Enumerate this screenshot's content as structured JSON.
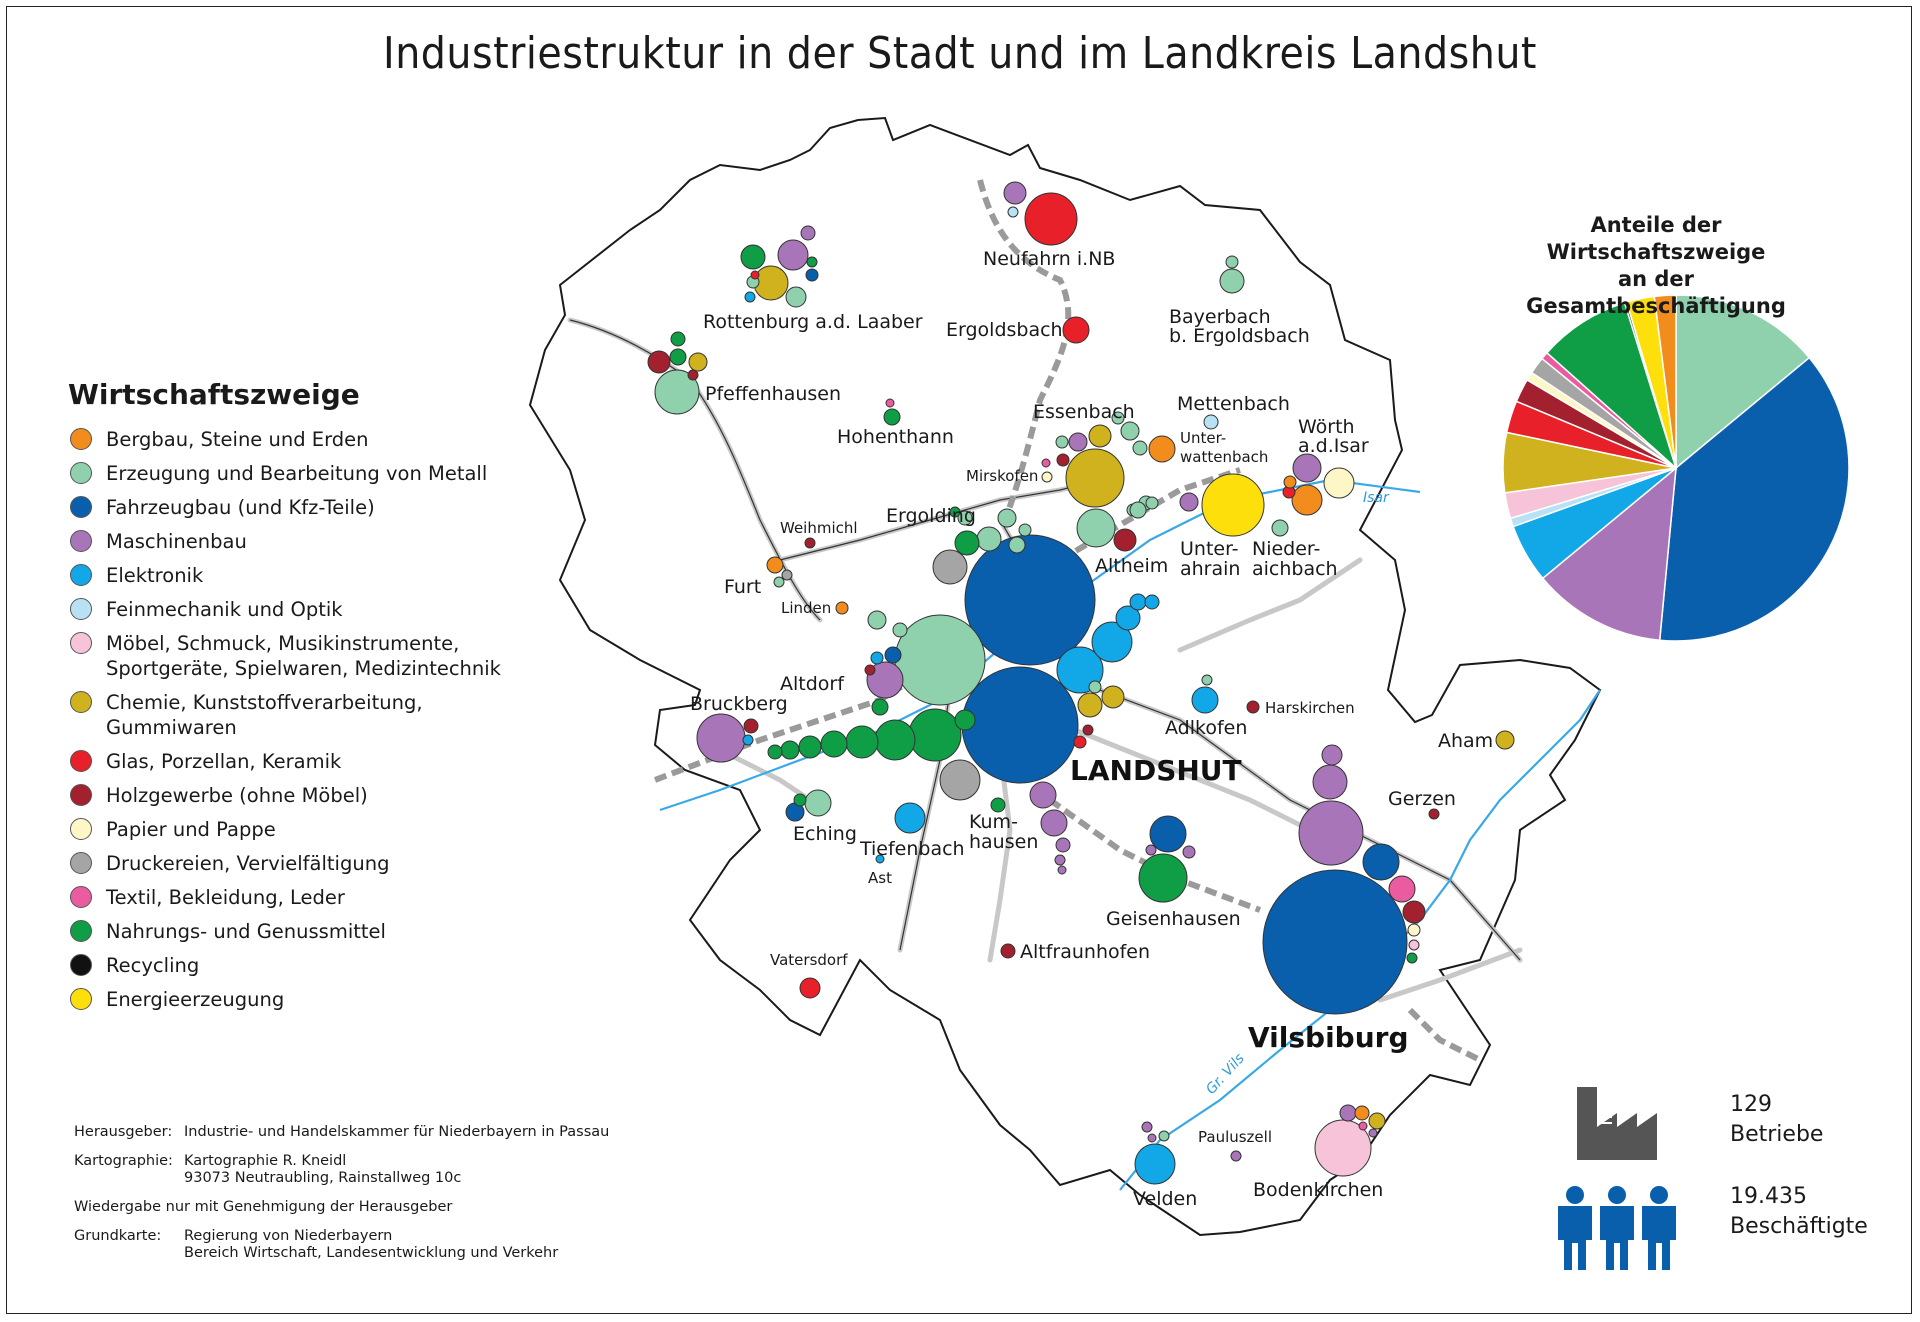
{
  "title": "Industriestruktur in der Stadt und im Landkreis Landshut",
  "legend": {
    "heading": "Wirtschaftszweige",
    "items": [
      {
        "label": "Bergbau, Steine und Erden",
        "color": "#f28c1c"
      },
      {
        "label": "Erzeugung und Bearbeitung von Metall",
        "color": "#8fd1ad"
      },
      {
        "label": "Fahrzeugbau (und Kfz-Teile)",
        "color": "#0a5fad"
      },
      {
        "label": "Maschinenbau",
        "color": "#a876b8"
      },
      {
        "label": "Elektronik",
        "color": "#12a7e6"
      },
      {
        "label": "Feinmechanik und Optik",
        "color": "#b8e2f4"
      },
      {
        "label": "Möbel, Schmuck, Musikinstrumente, Sportgeräte, Spielwaren, Medizintechnik",
        "color": "#f6c3d8"
      },
      {
        "label": "Chemie, Kunststoffverarbeitung, Gummiwaren",
        "color": "#cfb21e"
      },
      {
        "label": "Glas, Porzellan, Keramik",
        "color": "#e8202a"
      },
      {
        "label": "Holzgewerbe (ohne Möbel)",
        "color": "#a3202e"
      },
      {
        "label": "Papier und Pappe",
        "color": "#fdf7c8"
      },
      {
        "label": "Druckereien, Vervielfältigung",
        "color": "#a5a5a5"
      },
      {
        "label": "Textil, Bekleidung, Leder",
        "color": "#ea5ba0"
      },
      {
        "label": "Nahrungs- und Genussmittel",
        "color": "#0f9d46"
      },
      {
        "label": "Recycling",
        "color": "#111111"
      },
      {
        "label": "Energieerzeugung",
        "color": "#fde00b"
      }
    ]
  },
  "legend_lines": {
    "item6a": "Möbel, Schmuck, Musikinstrumente,",
    "item6b": "Sportgeräte, Spielwaren, Medizintechnik",
    "item7a": "Chemie, Kunststoffverarbeitung,",
    "item7b": "Gummiwaren"
  },
  "pie": {
    "title_line1": "Anteile der Wirtschaftszweige",
    "title_line2": "an der Gesamtbeschäftigung"
  },
  "chart_data": {
    "type": "pie",
    "slices": [
      {
        "sector": "Erzeugung und Bearbeitung von Metall",
        "share": 14.0,
        "color": "#8fd1ad"
      },
      {
        "sector": "Fahrzeugbau (und Kfz-Teile)",
        "share": 37.5,
        "color": "#0a5fad"
      },
      {
        "sector": "Maschinenbau",
        "share": 12.5,
        "color": "#a876b8"
      },
      {
        "sector": "Elektronik",
        "share": 5.5,
        "color": "#12a7e6"
      },
      {
        "sector": "Feinmechanik und Optik",
        "share": 0.8,
        "color": "#b8e2f4"
      },
      {
        "sector": "Möbel, Schmuck, Musikinstrumente, Sportgeräte, Spielwaren, Medizintechnik",
        "share": 2.4,
        "color": "#f6c3d8"
      },
      {
        "sector": "Chemie, Kunststoffverarbeitung, Gummiwaren",
        "share": 5.6,
        "color": "#cfb21e"
      },
      {
        "sector": "Glas, Porzellan, Keramik",
        "share": 3.0,
        "color": "#e8202a"
      },
      {
        "sector": "Holzgewerbe (ohne Möbel)",
        "share": 2.2,
        "color": "#a3202e"
      },
      {
        "sector": "Papier und Pappe",
        "share": 0.8,
        "color": "#fdf7c8"
      },
      {
        "sector": "Druckereien, Vervielfältigung",
        "share": 1.6,
        "color": "#a5a5a5"
      },
      {
        "sector": "Textil, Bekleidung, Leder",
        "share": 0.7,
        "color": "#ea5ba0"
      },
      {
        "sector": "Nahrungs- und Genussmittel",
        "share": 8.6,
        "color": "#0f9d46"
      },
      {
        "sector": "Recycling",
        "share": 0.2,
        "color": "#111111"
      },
      {
        "sector": "Energieerzeugung",
        "share": 2.6,
        "color": "#fde00b"
      },
      {
        "sector": "Bergbau, Steine und Erden",
        "share": 2.0,
        "color": "#f28c1c"
      }
    ]
  },
  "places": {
    "neufahrn": "Neufahrn i.NB",
    "rottenburg": "Rottenburg a.d. Laaber",
    "ergoldsbach": "Ergoldsbach",
    "bayerbach1": "Bayerbach",
    "bayerbach2": "b. Ergoldsbach",
    "pfeffenhausen": "Pfeffenhausen",
    "hohenthann": "Hohenthann",
    "essenbach": "Essenbach",
    "mettenbach": "Mettenbach",
    "unterwattenbach1": "Unter-",
    "unterwattenbach2": "wattenbach",
    "woerth1": "Wörth",
    "woerth2": "a.d.Isar",
    "mirskofen": "Mirskofen",
    "weihmichl": "Weihmichl",
    "ergolding": "Ergolding",
    "altheim": "Altheim",
    "unterahrain1": "Unter-",
    "unterahrain2": "ahrain",
    "niederaichbach1": "Nieder-",
    "niederaichbach2": "aichbach",
    "furt": "Furt",
    "linden": "Linden",
    "altdorf": "Altdorf",
    "bruckberg": "Bruckberg",
    "adlkofen": "Adlkofen",
    "harskirchen": "Harskirchen",
    "aham": "Aham",
    "landshut": "LANDSHUT",
    "gerzen": "Gerzen",
    "eching": "Eching",
    "tiefenbach": "Tiefenbach",
    "ast": "Ast",
    "kumhausen1": "Kum-",
    "kumhausen2": "hausen",
    "geisenhausen": "Geisenhausen",
    "altfraunhofen": "Altfraunhofen",
    "vatersdorf": "Vatersdorf",
    "vilsbiburg": "Vilsbiburg",
    "pauluszell": "Pauluszell",
    "velden": "Velden",
    "bodenkirchen": "Bodenkirchen",
    "isar": "Isar",
    "grvils": "Gr. Vils"
  },
  "credits": {
    "hrsg_k": "Herausgeber:",
    "hrsg_v": "Industrie- und Handelskammer für Niederbayern in Passau",
    "karto_k": "Kartographie:",
    "karto_v1": "Kartographie R. Kneidl",
    "karto_v2": "93073 Neutraubling, Rainstallweg 10c",
    "note": "Wiedergabe nur mit Genehmigung der Herausgeber",
    "grund_k": "Grundkarte:",
    "grund_v1": "Regierung von Niederbayern",
    "grund_v2": "Bereich Wirtschaft, Landesentwicklung und Verkehr"
  },
  "stats": {
    "betriebe_num": "129",
    "betriebe_label": "Betriebe",
    "besch_num": "19.435",
    "besch_label": "Beschäftigte",
    "icon_color": "#0a5fad",
    "factory_color": "#555555"
  }
}
